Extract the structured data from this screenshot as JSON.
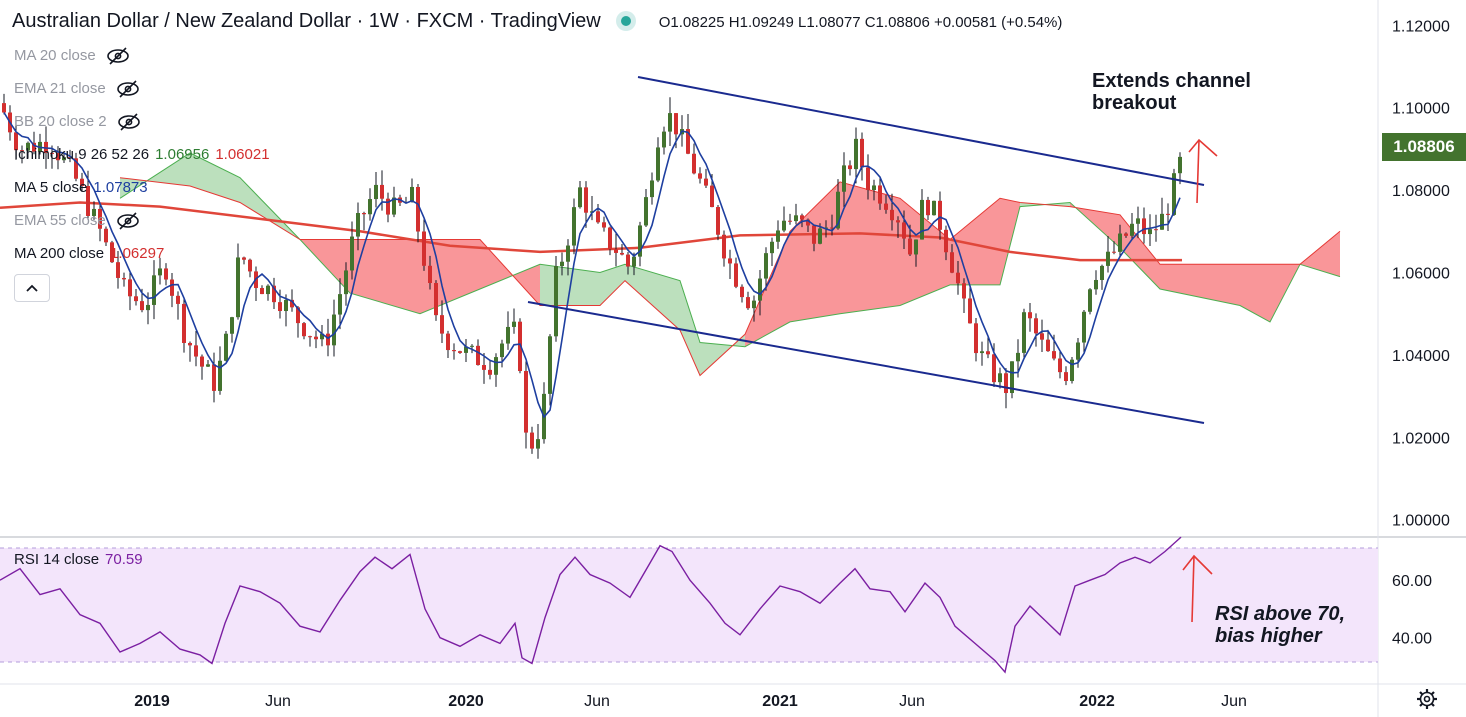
{
  "header": {
    "title": "Australian Dollar / New Zealand Dollar · 1W · FXCM · TradingView",
    "ohlc": "O1.08225  H1.09249  L1.08077  C1.08806  +0.00581  (+0.54%)"
  },
  "legend": [
    {
      "label": "MA 20 close",
      "hidden": true
    },
    {
      "label": "EMA 21 close",
      "hidden": true
    },
    {
      "label": "BB 20 close 2",
      "hidden": true
    },
    {
      "label": "Ichimoku 9 26 52 26",
      "v1": "1.06956",
      "v2": "1.06021"
    },
    {
      "label": "MA 5 close",
      "v1": "1.07873"
    },
    {
      "label": "EMA 55 close",
      "hidden": true
    },
    {
      "label": "MA 200 close",
      "v1": "1.06297"
    }
  ],
  "annotations": {
    "channel": [
      "Extends channel",
      "breakout"
    ],
    "rsi": [
      "RSI above 70,",
      "bias higher"
    ]
  },
  "rsi_legend": {
    "label": "RSI 14 close",
    "value": "70.59"
  },
  "price_badge": "1.08806",
  "colors": {
    "up": "#43732e",
    "down": "#d32f2f",
    "ma5": "#1e3fa0",
    "ma200": "#e0463a",
    "cloud_green": "#a5d6a7",
    "cloud_red": "#f77c80",
    "channel": "#1a2a8f",
    "rsi": "#7b1fa2",
    "rsi_bg": "#f3e5fb"
  },
  "chart_data": {
    "type": "candlestick",
    "price_axis": {
      "ticks": [
        "1.12000",
        "1.10000",
        "1.08000",
        "1.06000",
        "1.04000",
        "1.02000",
        "1.00000"
      ],
      "range": [
        0.9975,
        1.1225
      ]
    },
    "time_axis": {
      "ticks": [
        "2019",
        "Jun",
        "2020",
        "Jun",
        "2021",
        "Jun",
        "2022",
        "Jun"
      ]
    },
    "rsi_axis": {
      "ticks": [
        "60.00",
        "40.00"
      ],
      "range": [
        27,
        74
      ],
      "bands": [
        30,
        70
      ]
    },
    "last_close": 1.08806,
    "ma5_last": 1.07873,
    "ma200_last": 1.06297,
    "ichimoku": {
      "span_a": 1.06956,
      "span_b": 1.06021
    },
    "rsi_last": 70.59
  }
}
